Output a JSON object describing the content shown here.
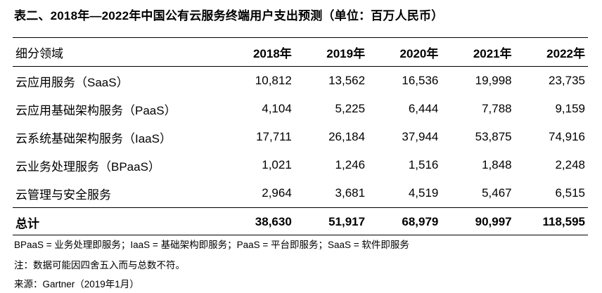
{
  "title": "表二、2018年—2022年中国公有云服务终端用户支出预测（单位：百万人民币）",
  "table": {
    "corner_label": "细分领域",
    "columns": [
      "2018年",
      "2019年",
      "2020年",
      "2021年",
      "2022年"
    ],
    "rows": [
      {
        "label": "云应用服务（SaaS）",
        "values": [
          "10,812",
          "13,562",
          "16,536",
          "19,998",
          "23,735"
        ]
      },
      {
        "label": "云应用基础架构服务（PaaS）",
        "values": [
          "4,104",
          "5,225",
          "6,444",
          "7,788",
          "9,159"
        ]
      },
      {
        "label": "云系统基础架构服务（IaaS）",
        "values": [
          "17,711",
          "26,184",
          "37,944",
          "53,875",
          "74,916"
        ]
      },
      {
        "label": "云业务处理服务（BPaaS）",
        "values": [
          "1,021",
          "1,246",
          "1,516",
          "1,848",
          "2,248"
        ]
      },
      {
        "label": "云管理与安全服务",
        "values": [
          "2,964",
          "3,681",
          "4,519",
          "5,467",
          "6,515"
        ]
      }
    ],
    "total": {
      "label": "总计",
      "values": [
        "38,630",
        "51,917",
        "68,979",
        "90,997",
        "118,595"
      ]
    }
  },
  "notes": {
    "abbreviations": "BPaaS = 业务处理即服务；IaaS = 基础架构即服务；PaaS = 平台即服务；SaaS = 软件即服务",
    "rounding": "注：数据可能因四舍五入而与总数不符。",
    "source": "来源：Gartner（2019年1月）"
  }
}
